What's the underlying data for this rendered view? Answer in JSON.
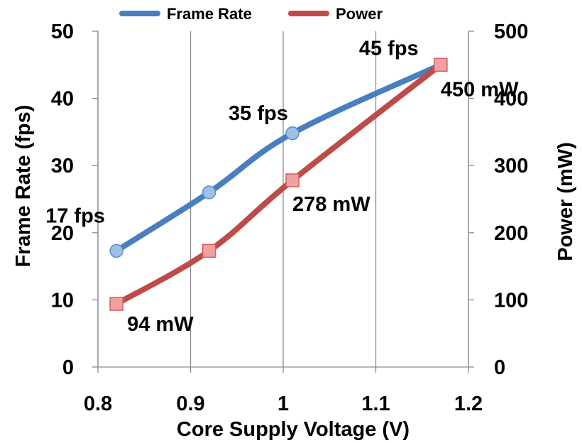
{
  "chart_data": {
    "type": "line",
    "x": [
      0.82,
      0.92,
      1.01,
      1.17
    ],
    "xlabel": "Core Supply Voltage (V)",
    "ylabel_left": "Frame Rate (fps)",
    "ylabel_right": "Power (mW)",
    "xlim": [
      0.8,
      1.2
    ],
    "xticks": [
      "0.8",
      "0.9",
      "1",
      "1.1",
      "1.2"
    ],
    "ylim_left": [
      0,
      50
    ],
    "yticks_left": [
      "0",
      "10",
      "20",
      "30",
      "40",
      "50"
    ],
    "ylim_right": [
      0,
      500
    ],
    "yticks_right": [
      "0",
      "100",
      "200",
      "300",
      "400",
      "500"
    ],
    "grid": "vertical",
    "legend_position": "top",
    "series": [
      {
        "name": "Frame Rate",
        "axis": "left",
        "color": "#4a7ebf",
        "marker": "circle",
        "values": [
          17.3,
          26,
          34.8,
          45
        ],
        "labels": [
          "17 fps",
          "",
          "35 fps",
          "45 fps"
        ]
      },
      {
        "name": "Power",
        "axis": "right",
        "color": "#bf4b48",
        "marker": "square",
        "values": [
          94,
          173,
          278,
          450
        ],
        "labels": [
          "94 mW",
          "",
          "278 mW",
          "450 mW"
        ]
      }
    ]
  }
}
